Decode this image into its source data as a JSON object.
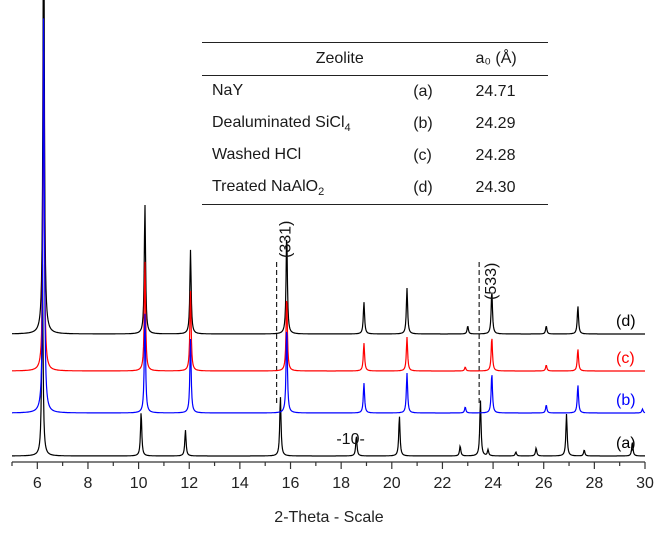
{
  "chart_data": {
    "type": "line",
    "title": "",
    "xlabel": "2-Theta - Scale",
    "ylabel": "",
    "xlim": [
      5,
      30
    ],
    "x_ticks": [
      6,
      8,
      10,
      12,
      14,
      16,
      18,
      20,
      22,
      24,
      26,
      28,
      30
    ],
    "y_ticks": [],
    "grid": false,
    "series": [
      {
        "name": "(a)",
        "color": "#000000",
        "peaks": [
          [
            6.2,
            0.98
          ],
          [
            10.1,
            0.22
          ],
          [
            11.85,
            0.13
          ],
          [
            15.6,
            0.3
          ],
          [
            18.6,
            0.1
          ],
          [
            20.3,
            0.2
          ],
          [
            22.7,
            0.05
          ],
          [
            23.5,
            0.28
          ],
          [
            23.8,
            0.03
          ],
          [
            24.9,
            0.02
          ],
          [
            25.7,
            0.04
          ],
          [
            26.9,
            0.21
          ],
          [
            27.6,
            0.03
          ],
          [
            29.5,
            0.07
          ]
        ]
      },
      {
        "name": "(b)",
        "color": "#0000ff",
        "peaks": [
          [
            6.25,
            2.05
          ],
          [
            10.25,
            0.5
          ],
          [
            12.05,
            0.37
          ],
          [
            15.85,
            0.44
          ],
          [
            18.9,
            0.15
          ],
          [
            20.6,
            0.2
          ],
          [
            22.9,
            0.03
          ],
          [
            23.95,
            0.2
          ],
          [
            26.1,
            0.04
          ],
          [
            27.35,
            0.14
          ],
          [
            29.9,
            0.02
          ]
        ]
      },
      {
        "name": "(c)",
        "color": "#ff0000",
        "peaks": [
          [
            6.25,
            1.66
          ],
          [
            10.25,
            0.55
          ],
          [
            12.05,
            0.4
          ],
          [
            15.85,
            0.38
          ],
          [
            18.9,
            0.14
          ],
          [
            20.6,
            0.17
          ],
          [
            22.9,
            0.02
          ],
          [
            23.95,
            0.17
          ],
          [
            26.1,
            0.03
          ],
          [
            27.35,
            0.11
          ]
        ]
      },
      {
        "name": "(d)",
        "color": "#000000",
        "peaks": [
          [
            6.25,
            2.42
          ],
          [
            10.25,
            0.65
          ],
          [
            12.05,
            0.42
          ],
          [
            15.85,
            0.51
          ],
          [
            18.9,
            0.16
          ],
          [
            20.6,
            0.23
          ],
          [
            23.0,
            0.04
          ],
          [
            23.95,
            0.22
          ],
          [
            26.1,
            0.04
          ],
          [
            27.35,
            0.14
          ]
        ]
      }
    ],
    "annotations": [
      {
        "text": "(331)",
        "x": 15.85
      },
      {
        "text": "(533)",
        "x": 23.95
      },
      {
        "text": "-10-",
        "x": 18.6
      }
    ],
    "reference_lines": [
      15.45,
      23.45
    ]
  },
  "legend_table": {
    "headers": {
      "zeolite": "Zeolite",
      "a0": "a₀ (Å)"
    },
    "rows": [
      {
        "name": "NaY",
        "sub": "",
        "label": "(a)",
        "a0": "24.71"
      },
      {
        "name": "Dealuminated SiCl",
        "sub": "4",
        "label": "(b)",
        "a0": "24.29"
      },
      {
        "name": "Washed HCl",
        "sub": "",
        "label": "(c)",
        "a0": "24.28"
      },
      {
        "name": "Treated NaAlO",
        "sub": "2",
        "label": "(d)",
        "a0": "24.30"
      }
    ]
  }
}
